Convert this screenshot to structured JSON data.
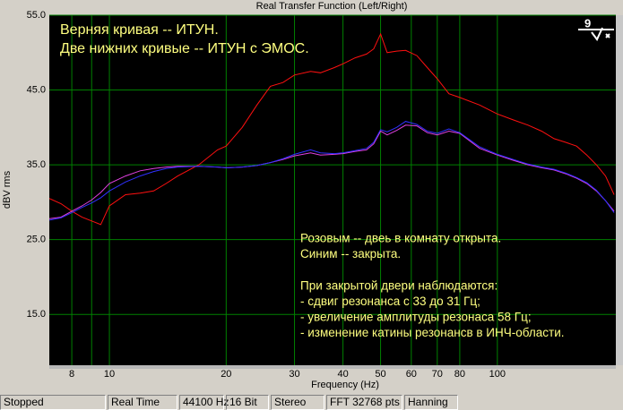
{
  "chart_data": {
    "type": "line",
    "title": "Real Transfer Function (Left/Right)",
    "xlabel": "Frequency (Hz)",
    "ylabel": "dBV rms",
    "xscale": "log",
    "grid": true,
    "xlim": [
      7,
      202
    ],
    "ylim": [
      8.2,
      55
    ],
    "xticks": [
      8,
      10,
      20,
      30,
      40,
      50,
      60,
      70,
      80,
      100
    ],
    "xminorticks": [
      9
    ],
    "yticks": [
      {
        "value": 55,
        "label": "55.0"
      },
      {
        "value": 45,
        "label": "45.0"
      },
      {
        "value": 35,
        "label": "35.0"
      },
      {
        "value": 25,
        "label": "25.0"
      },
      {
        "value": 15,
        "label": "15.0"
      }
    ],
    "x": [
      7,
      7.5,
      8,
      8.5,
      9,
      9.5,
      10,
      11,
      12,
      13,
      14,
      15,
      17,
      19,
      20,
      22,
      24,
      26,
      28,
      30,
      33,
      35,
      38,
      40,
      43,
      46,
      48,
      50,
      52,
      55,
      58,
      62,
      66,
      70,
      75,
      80,
      90,
      100,
      110,
      120,
      130,
      140,
      150,
      160,
      170,
      180,
      190,
      200
    ],
    "series": [
      {
        "color": "#ff1010",
        "values": [
          30.5,
          29.8,
          28.8,
          28,
          27.5,
          27,
          29.5,
          31,
          31.2,
          31.5,
          32.5,
          33.5,
          35,
          37,
          37.5,
          40,
          43,
          45.5,
          46,
          47,
          47.5,
          47.3,
          48,
          48.5,
          49.3,
          49.8,
          50.5,
          52.5,
          50,
          50.2,
          50.3,
          49.6,
          48,
          46.5,
          44.5,
          44,
          43,
          41.8,
          41,
          40.3,
          39.5,
          38.5,
          38,
          37.5,
          36.3,
          35,
          33.5,
          31
        ]
      },
      {
        "color": "#e040e0",
        "values": [
          27.8,
          28,
          28.8,
          29.5,
          30.3,
          31.3,
          32.5,
          33.5,
          34.2,
          34.5,
          34.7,
          34.8,
          34.8,
          34.7,
          34.6,
          34.7,
          34.9,
          35.3,
          35.7,
          36.2,
          36.6,
          36.3,
          36.4,
          36.5,
          36.8,
          37,
          37.8,
          39.5,
          39,
          39.6,
          40.3,
          40.2,
          39.3,
          39,
          39.5,
          39.2,
          37.2,
          36.3,
          35.6,
          35,
          34.6,
          34.3,
          33.8,
          33.2,
          32.5,
          31.5,
          30.2,
          28.8
        ]
      },
      {
        "color": "#3030ff",
        "values": [
          27.6,
          27.9,
          28.6,
          29.3,
          29.9,
          30.6,
          31.5,
          32.7,
          33.5,
          34.1,
          34.5,
          34.7,
          34.8,
          34.7,
          34.6,
          34.7,
          34.9,
          35.3,
          35.8,
          36.4,
          37,
          36.6,
          36.5,
          36.6,
          36.9,
          37.2,
          38,
          39.7,
          39.4,
          40,
          40.8,
          40.4,
          39.5,
          39.2,
          39.8,
          39.3,
          37.4,
          36.4,
          35.7,
          35.1,
          34.7,
          34.4,
          33.9,
          33.3,
          32.6,
          31.6,
          30.2,
          28.6
        ]
      }
    ],
    "annotation_top": [
      "Верняя кривая -- ИТУН.",
      "Две нижних кривые -- ИТУН с ЭМОС."
    ],
    "annotation_bottom": [
      "Розовым -- двеь в комнату открыта.",
      "Синим -- закрыта.",
      null,
      "При закрытой двери наблюдаются:",
      "- сдвиг резонанса с 33 до 31 Гц;",
      "- увеличение амплитуды резонаса 58 Гц;",
      "- изменение катины резонансв в ИНЧ-области."
    ]
  },
  "status_bar": [
    "Stopped",
    "Real Time",
    "44100 Hz",
    "16 Bit",
    "Stereo",
    "FFT 32768 pts",
    "Hanning"
  ]
}
